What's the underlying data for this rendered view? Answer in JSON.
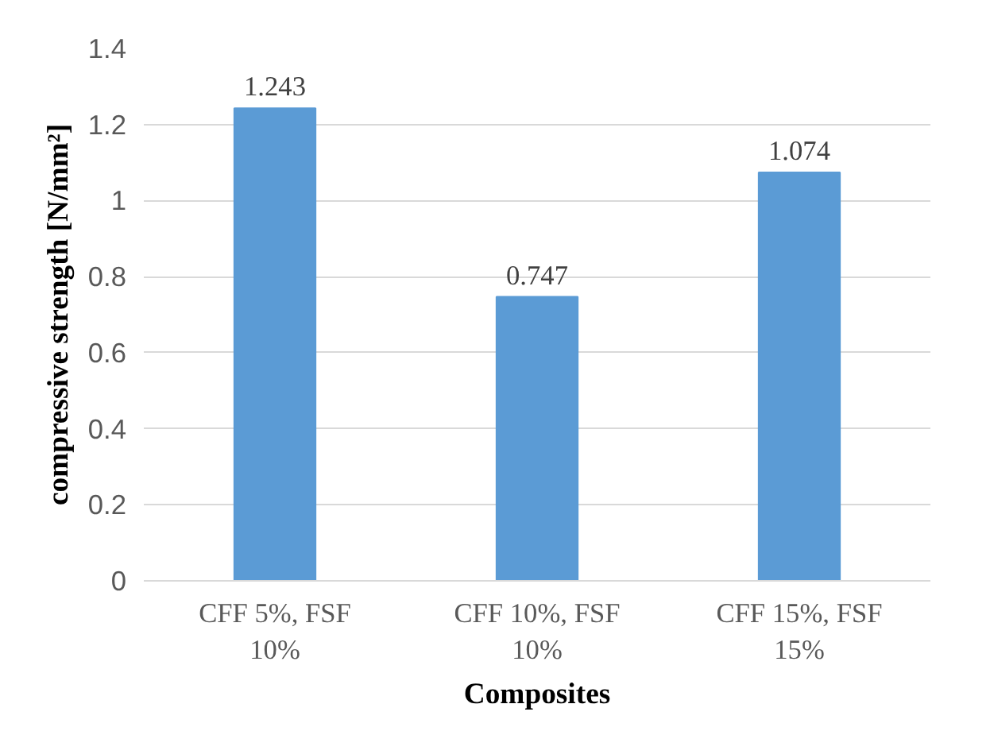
{
  "chart_data": {
    "type": "bar",
    "xlabel": "Composites",
    "ylabel": "compressive strength [N/mm²]",
    "categories": [
      "CFF 5%, FSF 10%",
      "CFF 10%, FSF 10%",
      "CFF 15%, FSF 15%"
    ],
    "values": [
      1.243,
      0.747,
      1.074
    ],
    "color": "#5b9bd5",
    "ylim": [
      0,
      1.4
    ],
    "yticks": [
      0,
      0.2,
      0.4,
      0.6,
      0.8,
      1,
      1.2,
      1.4
    ],
    "grid": "y",
    "data_labels": true
  }
}
